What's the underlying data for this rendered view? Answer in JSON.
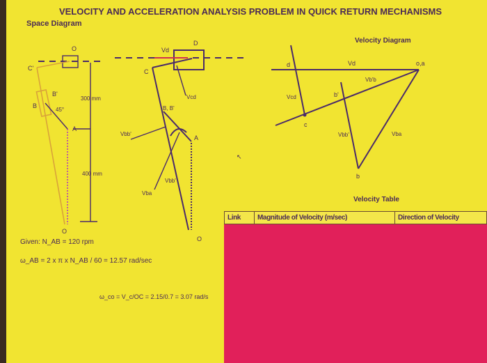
{
  "title": "VELOCITY AND ACCELERATION ANALYSIS PROBLEM IN QUICK RETURN MECHANISMS",
  "space_diagram": {
    "heading": "Space Diagram",
    "labels": {
      "O_top": "O",
      "C_prime": "C'",
      "B": "B",
      "B_prime": "B'",
      "angle": "45°",
      "A": "A",
      "O_bottom": "O",
      "dim_300": "300 mm",
      "dim_400": "400 mm"
    }
  },
  "mechanism": {
    "labels": {
      "D": "D",
      "Vd": "Vd",
      "C": "C",
      "Vcd": "Vcd",
      "BB": "B, B'",
      "Vbb": "Vbb'",
      "A": "A",
      "Vbb2": "Vbb'",
      "Vba": "Vba",
      "O": "O"
    }
  },
  "velocity_diagram": {
    "heading": "Velocity Diagram",
    "labels": {
      "oa": "o,a",
      "d": "d",
      "Vd": "Vd",
      "Vbb": "Vb'b",
      "Vcd": "Vcd",
      "b_prime": "b'",
      "c": "c",
      "Vbb2": "Vbb'",
      "Vba": "Vba",
      "b": "b"
    }
  },
  "given": {
    "line1": "Given: N_AB = 120 rpm",
    "line2": "ω_AB = 2 x π x N_AB / 60 = 12.57 rad/sec",
    "line3": "ω_co = V_c/OC = 2.15/0.7 = 3.07 rad/s"
  },
  "velocity_table": {
    "heading": "Velocity Table",
    "columns": [
      "Link",
      "Magnitude of Velocity (m/sec)",
      "Direction of Velocity"
    ],
    "fill_color": "#e1205a"
  },
  "colors": {
    "background": "#f1e431",
    "ink": "#4a2a6a"
  }
}
